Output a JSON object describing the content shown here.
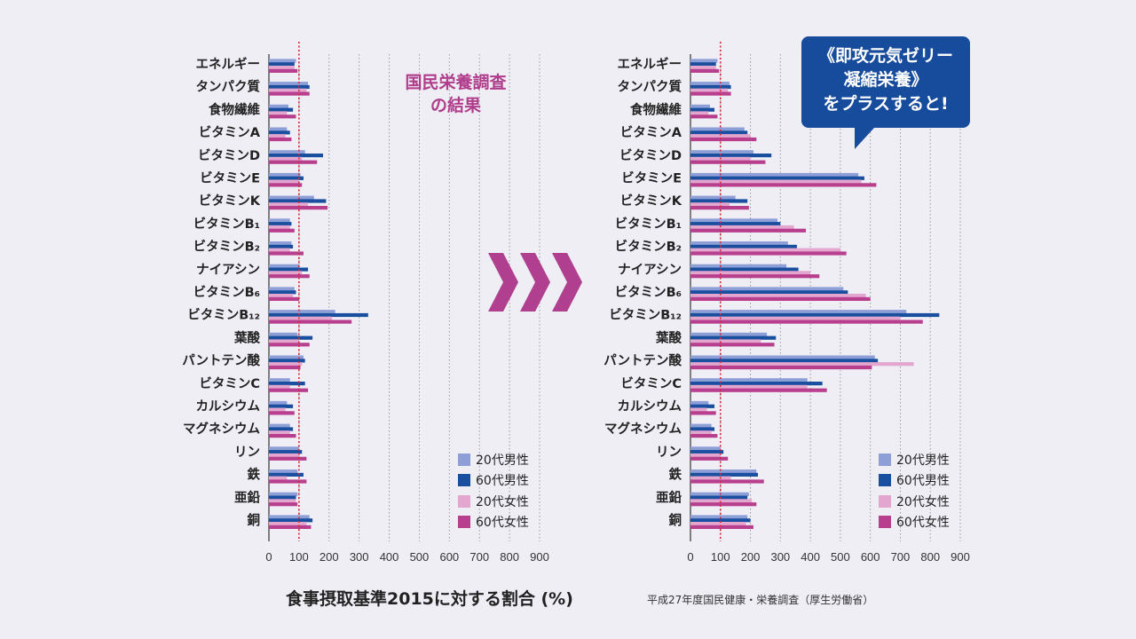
{
  "categories": [
    "エネルギー",
    "タンパク質",
    "食物繊維",
    "ビタミンA",
    "ビタミンD",
    "ビタミンE",
    "ビタミンK",
    "ビタミンB₁",
    "ビタミンB₂",
    "ナイアシン",
    "ビタミンB₆",
    "ビタミンB₁₂",
    "葉酸",
    "パントテン酸",
    "ビタミンC",
    "カルシウム",
    "マグネシウム",
    "リン",
    "鉄",
    "亜鉛",
    "銅"
  ],
  "callout_left": [
    "国民栄養調査",
    "の結果"
  ],
  "callout_right": [
    "《即攻元気ゼリー",
    "凝縮栄養》",
    "をプラスすると!"
  ],
  "footer": {
    "title": "食事摂取基準2015に対する割合 (%)",
    "source": "平成27年度国民健康・栄養調査（厚生労働省）"
  },
  "colors": {
    "male20": "#8d9fd6",
    "male60": "#1a4fa0",
    "female20": "#e2a6cf",
    "female60": "#b83f8e",
    "refline": "#d42a3a",
    "arrow": "#b0408f"
  },
  "legend": [
    "20代男性",
    "60代男性",
    "20代女性",
    "60代女性"
  ],
  "chart_data": [
    {
      "type": "bar",
      "title": "国民栄養調査の結果",
      "xlabel": "食事摂取基準2015に対する割合 (%)",
      "xlim": [
        0,
        900
      ],
      "xticks": [
        0,
        100,
        200,
        300,
        400,
        500,
        600,
        700,
        800,
        900
      ],
      "reference_line": 100,
      "series": [
        {
          "name": "20代男性",
          "values": [
            90,
            130,
            65,
            60,
            120,
            105,
            150,
            70,
            75,
            100,
            85,
            220,
            95,
            115,
            70,
            60,
            70,
            100,
            95,
            95,
            135
          ]
        },
        {
          "name": "60代男性",
          "values": [
            85,
            135,
            80,
            70,
            180,
            115,
            190,
            75,
            80,
            130,
            90,
            330,
            145,
            120,
            120,
            80,
            80,
            110,
            115,
            90,
            145
          ]
        },
        {
          "name": "20代女性",
          "values": [
            85,
            125,
            60,
            55,
            110,
            100,
            130,
            70,
            70,
            110,
            80,
            210,
            100,
            110,
            70,
            55,
            70,
            100,
            60,
            90,
            125
          ]
        },
        {
          "name": "60代女性",
          "values": [
            95,
            135,
            90,
            75,
            160,
            110,
            195,
            85,
            115,
            135,
            100,
            275,
            135,
            105,
            130,
            85,
            90,
            125,
            125,
            95,
            140
          ]
        }
      ]
    },
    {
      "type": "bar",
      "title": "《即攻元気ゼリー凝縮栄養》をプラスすると!",
      "xlabel": "食事摂取基準2015に対する割合 (%)",
      "xlim": [
        0,
        900
      ],
      "xticks": [
        0,
        100,
        200,
        300,
        400,
        500,
        600,
        700,
        800,
        900
      ],
      "reference_line": 100,
      "series": [
        {
          "name": "20代男性",
          "values": [
            90,
            130,
            65,
            180,
            210,
            560,
            150,
            290,
            325,
            320,
            510,
            720,
            255,
            615,
            390,
            60,
            70,
            100,
            220,
            195,
            190
          ]
        },
        {
          "name": "60代男性",
          "values": [
            85,
            135,
            80,
            190,
            270,
            580,
            190,
            300,
            355,
            360,
            525,
            830,
            285,
            625,
            440,
            80,
            80,
            110,
            225,
            190,
            200
          ]
        },
        {
          "name": "20代女性",
          "values": [
            85,
            125,
            60,
            200,
            200,
            570,
            130,
            345,
            500,
            400,
            585,
            700,
            235,
            745,
            390,
            55,
            70,
            100,
            135,
            205,
            185
          ]
        },
        {
          "name": "60代女性",
          "values": [
            95,
            135,
            90,
            220,
            250,
            620,
            195,
            385,
            520,
            430,
            600,
            775,
            280,
            605,
            455,
            85,
            90,
            125,
            245,
            220,
            210
          ]
        }
      ]
    }
  ]
}
